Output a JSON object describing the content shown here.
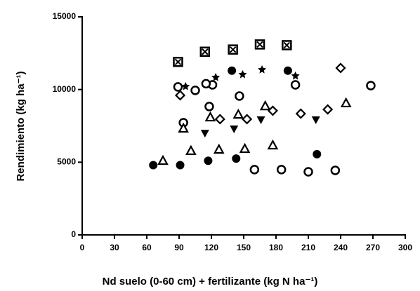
{
  "chart_data": {
    "type": "scatter",
    "xlabel": "Nd suelo (0-60 cm) + fertilizante (kg N ha⁻¹)",
    "ylabel": "Rendimiento (kg ha⁻¹)",
    "xlim": [
      0,
      300
    ],
    "xticks": [
      0,
      30,
      60,
      90,
      120,
      150,
      180,
      210,
      240,
      270,
      300
    ],
    "ylim": [
      0,
      15000
    ],
    "yticks": [
      0,
      5000,
      10000,
      15000
    ],
    "series": [
      {
        "marker": "square-x",
        "color": "#000000",
        "x": [
          89,
          114,
          140,
          165,
          190
        ],
        "values": [
          11900,
          12600,
          12750,
          13100,
          13050
        ]
      },
      {
        "marker": "circle-filled",
        "color": "#000000",
        "x": [
          66,
          91,
          117,
          143,
          218,
          139,
          191
        ],
        "values": [
          4800,
          4800,
          5100,
          5250,
          5550,
          11300,
          11300
        ]
      },
      {
        "marker": "circle-open",
        "color": "#000000",
        "x": [
          89,
          105,
          94,
          118,
          121,
          146,
          198,
          268,
          160,
          185,
          210,
          235,
          115
        ],
        "values": [
          10180,
          9940,
          7720,
          8830,
          10320,
          9550,
          10320,
          10270,
          4490,
          4490,
          4340,
          4440,
          10400
        ]
      },
      {
        "marker": "star",
        "color": "#000000",
        "x": [
          96,
          124,
          149,
          167,
          198
        ],
        "values": [
          10225,
          10850,
          11045,
          11380,
          10950
        ]
      },
      {
        "marker": "triangle-open",
        "color": "#000000",
        "x": [
          75,
          94,
          101,
          119,
          127,
          145,
          151,
          170,
          177,
          245
        ],
        "values": [
          5110,
          7330,
          5790,
          8100,
          5880,
          8290,
          5930,
          8870,
          6170,
          9070
        ]
      },
      {
        "marker": "triangle-down-filled",
        "color": "#000000",
        "x": [
          114,
          141,
          166,
          217
        ],
        "values": [
          6990,
          7280,
          7910,
          7910
        ]
      },
      {
        "marker": "diamond-open",
        "color": "#000000",
        "x": [
          91,
          128,
          153,
          177,
          203,
          228,
          240
        ],
        "values": [
          9600,
          7960,
          7960,
          8540,
          8340,
          8630,
          11480
        ]
      }
    ]
  }
}
